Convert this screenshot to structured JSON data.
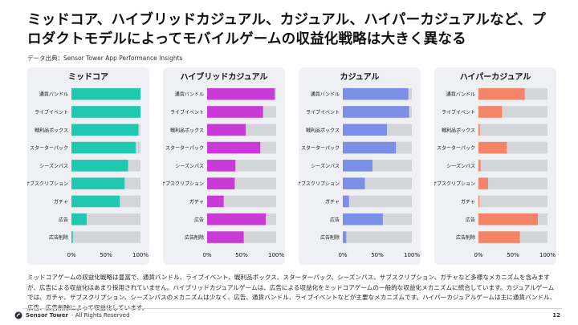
{
  "header": {
    "title": "ミッドコア、ハイブリッドカジュアル、カジュアル、ハイパーカジュアルなど、プロダクトモデルによってモバイルゲームの収益化戦略は大きく異なる",
    "source": "データ出典：Sensor Tower App Performance Insights"
  },
  "footer": {
    "text": "ミッドコアゲームの収益化戦略は豊富で、通貨バンドル、ライブイベント、戦利品ボックス、スターターパック、シーズンパス、サブスクリプション、ガチャなど多様なメカニズムを含みますが、広告による収益化はあまり採用されていません。ハイブリッドカジュアルゲームは、広告による収益化をミッドコアゲームの一般的な収益化メカニズムに統合しています。カジュアルゲームでは、ガチャ、サブスクリプション、シーズンパスのメカニズムは少なく、広告、通貨バンドル、ライブイベントなどが主要なメカニズムです。ハイパーカジュアルゲームは主に通貨バンドル、広告、広告削除によって収益化しています。",
    "brand": "Sensor Tower",
    "rights": " - All Rights Reserved",
    "page": "12"
  },
  "chart_data": [
    {
      "type": "bar",
      "orientation": "horizontal",
      "title": "ミッドコア",
      "color": "#1fc9b0",
      "categories": [
        "通貨バンドル",
        "ライブイベント",
        "戦利品ボックス",
        "スターターパック",
        "シーズンパス",
        "サブスクリプション",
        "ガチャ",
        "広告",
        "広告削除"
      ],
      "values": [
        100,
        100,
        97,
        93,
        82,
        77,
        70,
        22,
        2
      ],
      "xticks": [
        "0%",
        "50%",
        "100%"
      ],
      "xlim": [
        0,
        100
      ]
    },
    {
      "type": "bar",
      "orientation": "horizontal",
      "title": "ハイブリッドカジュアル",
      "color": "#c93ad6",
      "categories": [
        "通貨バンドル",
        "ライブイベント",
        "戦利品ボックス",
        "スターターパック",
        "シーズンパス",
        "サブスクリプション",
        "ガチャ",
        "広告",
        "広告削除"
      ],
      "values": [
        98,
        81,
        56,
        77,
        41,
        40,
        24,
        85,
        53
      ],
      "xticks": [
        "0%",
        "50%",
        "100%"
      ],
      "xlim": [
        0,
        100
      ]
    },
    {
      "type": "bar",
      "orientation": "horizontal",
      "title": "カジュアル",
      "color": "#7b8fe6",
      "categories": [
        "通貨バンドル",
        "ライブイベント",
        "戦利品ボックス",
        "スターターパック",
        "シーズンパス",
        "サブスクリプション",
        "ガチャ",
        "広告",
        "広告削除"
      ],
      "values": [
        95,
        96,
        64,
        77,
        43,
        32,
        9,
        58,
        5
      ],
      "xticks": [
        "0%",
        "50%",
        "100%"
      ],
      "xlim": [
        0,
        100
      ]
    },
    {
      "type": "bar",
      "orientation": "horizontal",
      "title": "ハイパーカジュアル",
      "color": "#f58466",
      "categories": [
        "通貨バンドル",
        "ライブイベント",
        "戦利品ボックス",
        "スターターパック",
        "シーズンパス",
        "サブスクリプション",
        "ガチャ",
        "広告",
        "広告削除"
      ],
      "values": [
        67,
        34,
        2,
        41,
        3,
        14,
        1,
        86,
        60
      ],
      "xticks": [
        "0%",
        "50%",
        "100%"
      ],
      "xlim": [
        0,
        100
      ]
    }
  ]
}
